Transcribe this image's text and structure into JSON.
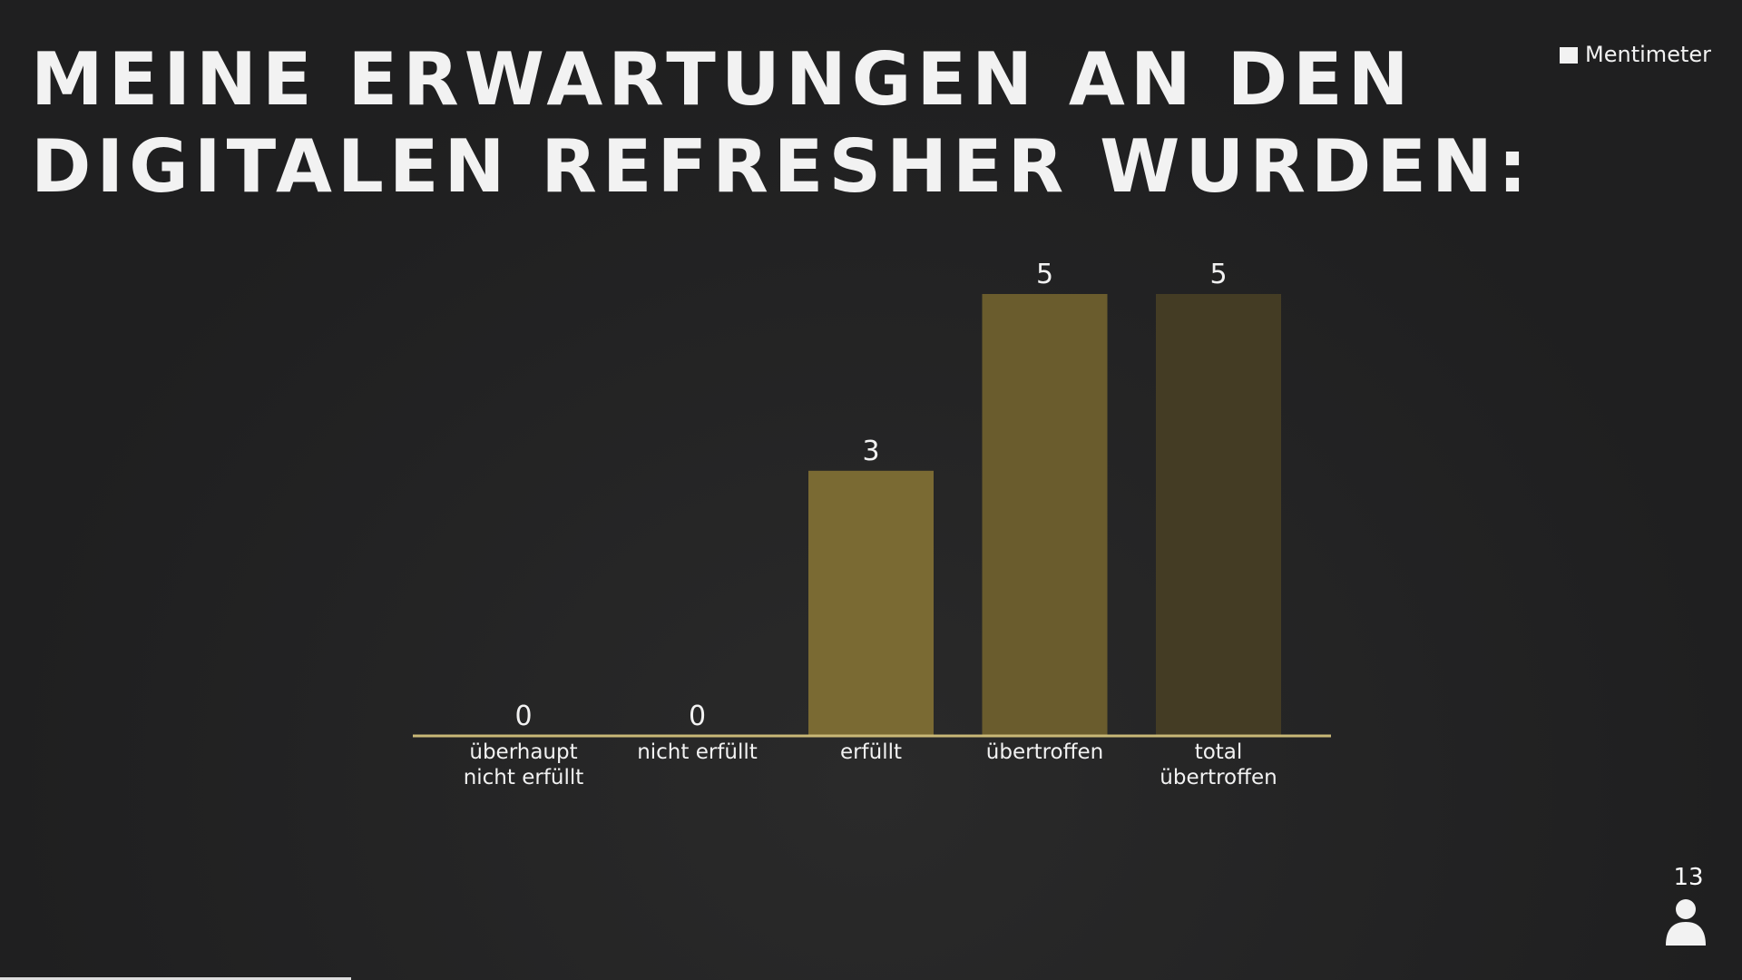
{
  "brand": "Mentimeter",
  "participants": 13,
  "chart_data": {
    "type": "bar",
    "title_lines": [
      "MEINE ERWARTUNGEN AN DEN",
      "DIGITALEN REFRESHER WURDEN:"
    ],
    "categories": [
      "überhaupt nicht erfüllt",
      "nicht erfüllt",
      "erfüllt",
      "übertroffen",
      "total übertroffen"
    ],
    "values": [
      0,
      0,
      3,
      5,
      5
    ],
    "colors": [
      "#7a6a33",
      "#736432",
      "#7a6a33",
      "#6a5c2d",
      "#443c24"
    ],
    "ylim": [
      0,
      5
    ]
  }
}
